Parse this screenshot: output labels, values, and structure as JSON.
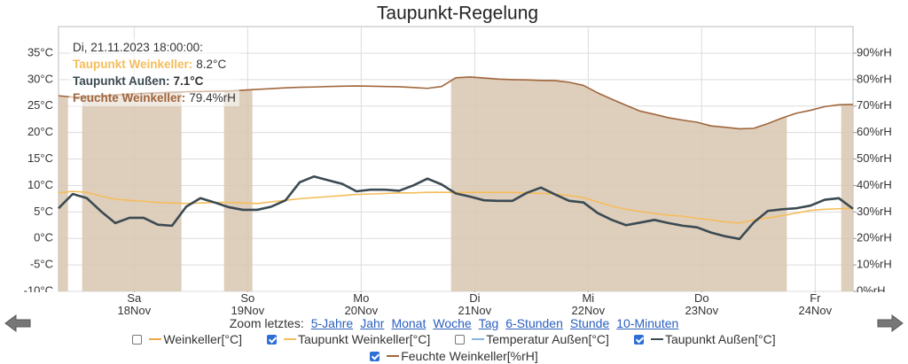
{
  "chart_data": {
    "type": "line",
    "title": "Taupunkt-Regelung",
    "x": [
      "2023-11-17T08:00",
      "2023-11-17T11:00",
      "2023-11-17T14:00",
      "2023-11-17T17:00",
      "2023-11-17T20:00",
      "2023-11-17T23:00",
      "2023-11-18T02:00",
      "2023-11-18T05:00",
      "2023-11-18T08:00",
      "2023-11-18T11:00",
      "2023-11-18T14:00",
      "2023-11-18T17:00",
      "2023-11-18T20:00",
      "2023-11-18T23:00",
      "2023-11-19T02:00",
      "2023-11-19T05:00",
      "2023-11-19T08:00",
      "2023-11-19T11:00",
      "2023-11-19T14:00",
      "2023-11-19T17:00",
      "2023-11-19T20:00",
      "2023-11-19T23:00",
      "2023-11-20T02:00",
      "2023-11-20T05:00",
      "2023-11-20T08:00",
      "2023-11-20T11:00",
      "2023-11-20T14:00",
      "2023-11-20T17:00",
      "2023-11-20T20:00",
      "2023-11-20T23:00",
      "2023-11-21T02:00",
      "2023-11-21T05:00",
      "2023-11-21T08:00",
      "2023-11-21T11:00",
      "2023-11-21T14:00",
      "2023-11-21T17:00",
      "2023-11-21T20:00",
      "2023-11-21T23:00",
      "2023-11-22T02:00",
      "2023-11-22T05:00",
      "2023-11-22T08:00",
      "2023-11-22T11:00",
      "2023-11-22T14:00",
      "2023-11-22T17:00",
      "2023-11-22T20:00",
      "2023-11-22T23:00",
      "2023-11-23T02:00",
      "2023-11-23T05:00",
      "2023-11-23T08:00",
      "2023-11-23T11:00",
      "2023-11-23T14:00",
      "2023-11-23T17:00",
      "2023-11-23T20:00",
      "2023-11-23T23:00",
      "2023-11-24T02:00",
      "2023-11-24T05:00",
      "2023-11-24T08:00"
    ],
    "series": [
      {
        "name": "Weinkeller[°C]",
        "color": "#f0a848",
        "visible": false
      },
      {
        "name": "Taupunkt Weinkeller[°C]",
        "color": "#f5bd5a",
        "visible": true,
        "values": [
          8.6,
          8.9,
          8.7,
          8.0,
          7.4,
          7.2,
          7.0,
          6.8,
          6.7,
          6.6,
          6.7,
          6.8,
          6.8,
          6.7,
          6.6,
          6.9,
          7.2,
          7.5,
          7.7,
          7.9,
          8.1,
          8.3,
          8.4,
          8.5,
          8.6,
          8.6,
          8.7,
          8.7,
          8.7,
          8.7,
          8.7,
          8.7,
          8.7,
          8.6,
          8.5,
          8.4,
          8.1,
          7.7,
          6.9,
          6.1,
          5.5,
          5.1,
          4.7,
          4.4,
          4.2,
          3.8,
          3.5,
          3.1,
          2.9,
          3.5,
          3.9,
          4.3,
          4.8,
          5.3,
          5.5,
          5.6,
          5.7
        ]
      },
      {
        "name": "Temperatur Außen[°C]",
        "color": "#8ab4e0",
        "visible": false
      },
      {
        "name": "Taupunkt Außen[°C]",
        "color": "#3b4a52",
        "visible": true,
        "values": [
          5.7,
          8.4,
          7.6,
          5.1,
          2.9,
          3.9,
          3.9,
          2.6,
          2.4,
          6.0,
          7.6,
          6.8,
          5.9,
          5.4,
          5.4,
          6.0,
          7.2,
          10.6,
          11.7,
          11.0,
          10.3,
          8.9,
          9.2,
          9.2,
          9.0,
          10.0,
          11.3,
          10.2,
          8.5,
          7.9,
          7.2,
          7.1,
          7.1,
          8.6,
          9.6,
          8.3,
          7.1,
          6.8,
          4.8,
          3.5,
          2.5,
          3.0,
          3.5,
          2.9,
          2.4,
          2.1,
          1.1,
          0.4,
          -0.1,
          3.0,
          5.2,
          5.5,
          5.7,
          6.2,
          7.3,
          7.6,
          5.6
        ]
      },
      {
        "name": "Feuchte Weinkeller[%rH]",
        "color": "#a0663d",
        "visible": true,
        "axis": "y2",
        "values": [
          73.9,
          73.4,
          73.7,
          73.9,
          74.2,
          74.5,
          74.8,
          75.0,
          75.2,
          75.4,
          75.5,
          75.6,
          75.7,
          76.0,
          76.3,
          76.6,
          76.9,
          77.1,
          77.2,
          77.4,
          77.5,
          77.6,
          77.5,
          77.4,
          77.3,
          77.0,
          76.7,
          77.4,
          80.7,
          81.0,
          80.6,
          80.2,
          80.0,
          79.9,
          79.7,
          79.6,
          79.0,
          77.8,
          75.0,
          72.6,
          70.3,
          68.1,
          66.9,
          65.6,
          64.7,
          63.9,
          62.5,
          62.0,
          61.4,
          61.6,
          63.4,
          65.5,
          67.3,
          68.4,
          69.8,
          70.5,
          70.6
        ]
      }
    ],
    "bands": [
      [
        "2023-11-17T08:00",
        "2023-11-17T10:00"
      ],
      [
        "2023-11-17T13:00",
        "2023-11-18T10:00"
      ],
      [
        "2023-11-18T19:00",
        "2023-11-19T01:00"
      ],
      [
        "2023-11-20T19:00",
        "2023-11-23T18:00"
      ],
      [
        "2023-11-24T05:30",
        "2023-11-24T08:00"
      ]
    ],
    "band_color": "#d8c6b0",
    "xlim": [
      "2023-11-17T08:00",
      "2023-11-24T08:00"
    ],
    "xticks": [
      {
        "value": "2023-11-18T00:00",
        "label": "Sa\n18Nov"
      },
      {
        "value": "2023-11-19T00:00",
        "label": "So\n19Nov"
      },
      {
        "value": "2023-11-20T00:00",
        "label": "Mo\n20Nov"
      },
      {
        "value": "2023-11-21T00:00",
        "label": "Di\n21Nov"
      },
      {
        "value": "2023-11-22T00:00",
        "label": "Mi\n22Nov"
      },
      {
        "value": "2023-11-23T00:00",
        "label": "Do\n23Nov"
      },
      {
        "value": "2023-11-24T00:00",
        "label": "Fr\n24Nov"
      }
    ],
    "ylim": [
      -10,
      35
    ],
    "yticks": [
      {
        "value": -10,
        "label": "-10°C"
      },
      {
        "value": -5,
        "label": "-5°C"
      },
      {
        "value": 0,
        "label": "0°C"
      },
      {
        "value": 5,
        "label": "5°C"
      },
      {
        "value": 10,
        "label": "10°C"
      },
      {
        "value": 15,
        "label": "15°C"
      },
      {
        "value": 20,
        "label": "20°C"
      },
      {
        "value": 25,
        "label": "25°C"
      },
      {
        "value": 30,
        "label": "30°C"
      },
      {
        "value": 35,
        "label": "35°C"
      }
    ],
    "y2lim": [
      0,
      90
    ],
    "y2ticks": [
      {
        "value": 0,
        "label": "0%rH"
      },
      {
        "value": 10,
        "label": "10%rH"
      },
      {
        "value": 20,
        "label": "20%rH"
      },
      {
        "value": 30,
        "label": "30%rH"
      },
      {
        "value": 40,
        "label": "40%rH"
      },
      {
        "value": 50,
        "label": "50%rH"
      },
      {
        "value": 60,
        "label": "60%rH"
      },
      {
        "value": 70,
        "label": "70%rH"
      },
      {
        "value": 80,
        "label": "80%rH"
      },
      {
        "value": 90,
        "label": "90%rH"
      }
    ],
    "grid": true,
    "tooltip": {
      "time": "Di, 21.11.2023 18:00:00:",
      "items": [
        {
          "name": "Taupunkt Weinkeller:",
          "value": "8.2°C",
          "color": "#f5bd5a"
        },
        {
          "name": "Taupunkt Außen:",
          "value": "7.1°C",
          "color": "#3b4a52"
        },
        {
          "name": "Feuchte Weinkeller:",
          "value": "79.4%rH",
          "color": "#a0663d"
        }
      ]
    }
  },
  "zoom": {
    "label": "Zoom letztes:",
    "links": [
      "5-Jahre",
      "Jahr",
      "Monat",
      "Woche",
      "Tag",
      "6-Stunden",
      "Stunde",
      "10-Minuten"
    ]
  }
}
